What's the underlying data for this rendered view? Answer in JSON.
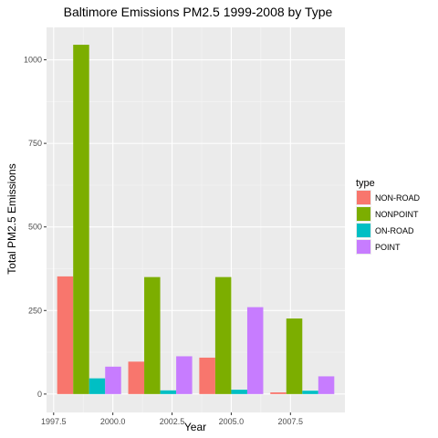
{
  "chart_data": {
    "type": "bar",
    "title": "Baltimore Emissions PM2.5 1999-2008 by Type",
    "xlabel": "Year",
    "ylabel": "Total PM2.5 Emissions",
    "x": [
      1999,
      2002,
      2005,
      2008
    ],
    "xlim": [
      1997.2,
      2009.8
    ],
    "ylim": [
      -55,
      1097
    ],
    "x_ticks": [
      {
        "value": 1997.5,
        "label": "1997.5"
      },
      {
        "value": 2000.0,
        "label": "2000.0"
      },
      {
        "value": 2002.5,
        "label": "2002.5"
      },
      {
        "value": 2005.0,
        "label": "2005.0"
      },
      {
        "value": 2007.5,
        "label": "2007.5"
      }
    ],
    "y_ticks": [
      {
        "value": 0,
        "label": "0"
      },
      {
        "value": 250,
        "label": "250"
      },
      {
        "value": 500,
        "label": "500"
      },
      {
        "value": 750,
        "label": "750"
      },
      {
        "value": 1000,
        "label": "1000"
      }
    ],
    "series": [
      {
        "name": "NON-ROAD",
        "color": "#F8766D",
        "values": [
          352,
          97,
          109,
          5
        ]
      },
      {
        "name": "NONPOINT",
        "color": "#7CAE00",
        "values": [
          1045,
          350,
          350,
          226
        ]
      },
      {
        "name": "ON-ROAD",
        "color": "#00BFC4",
        "values": [
          47,
          11,
          13,
          10
        ]
      },
      {
        "name": "POINT",
        "color": "#C77CFF",
        "values": [
          82,
          113,
          260,
          53
        ]
      }
    ],
    "grid": true,
    "legend": {
      "title": "type",
      "position": "right"
    },
    "colors": {
      "panel_background": "#EBEBEB",
      "grid_major": "#FFFFFF",
      "grid_minor": "#F5F5F5",
      "axis_text": "#4D4D4D",
      "axis_ticks": "#333333"
    }
  }
}
